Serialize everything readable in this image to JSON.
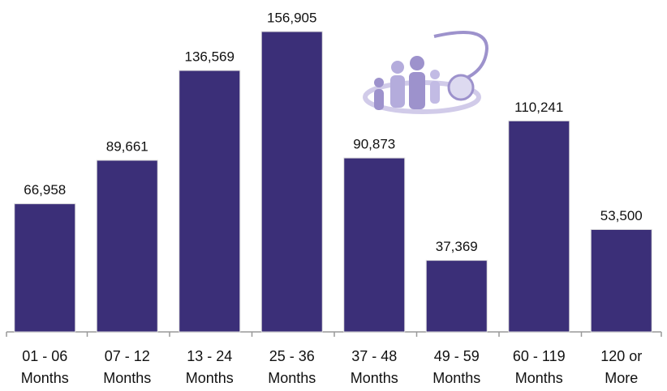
{
  "chart_data": {
    "type": "bar",
    "categories": [
      [
        "01 - 06",
        "Months"
      ],
      [
        "07 - 12",
        "Months"
      ],
      [
        "13 - 24",
        "Months"
      ],
      [
        "25 - 36",
        "Months"
      ],
      [
        "37 - 48",
        "Months"
      ],
      [
        "49 - 59",
        "Months"
      ],
      [
        "60 - 119",
        "Months"
      ],
      [
        "120 or",
        "More"
      ]
    ],
    "values": [
      66958,
      89661,
      136569,
      156905,
      90873,
      37369,
      110241,
      53500
    ],
    "value_labels": [
      "66,958",
      "89,661",
      "136,569",
      "156,905",
      "90,873",
      "37,369",
      "110,241",
      "53,500"
    ],
    "color": "#3b2f78"
  }
}
